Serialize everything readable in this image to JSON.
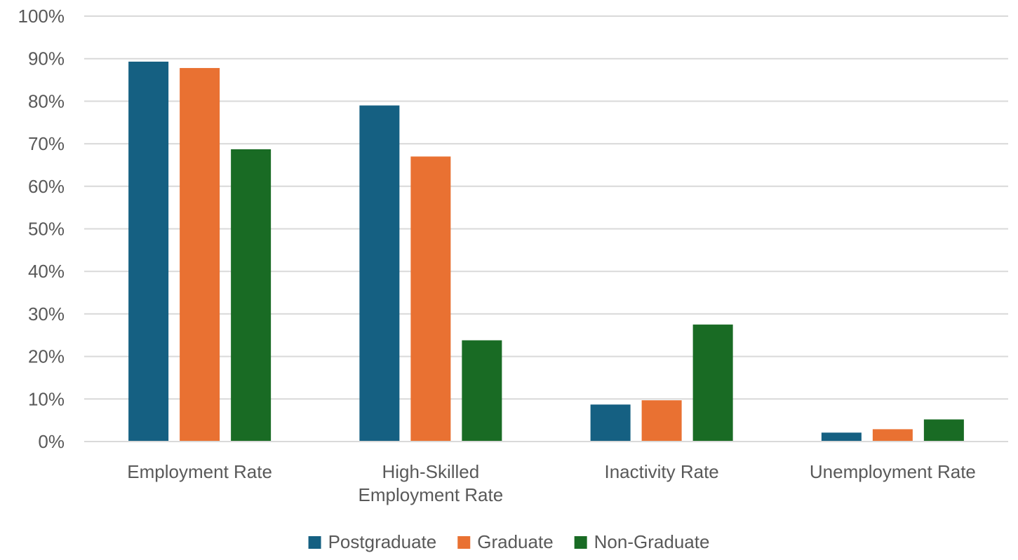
{
  "chart_data": {
    "type": "bar",
    "categories": [
      [
        "Employment Rate"
      ],
      [
        "High-Skilled",
        "Employment Rate"
      ],
      [
        "Inactivity Rate"
      ],
      [
        "Unemployment Rate"
      ]
    ],
    "series": [
      {
        "name": "Postgraduate",
        "color": "#156082",
        "values": [
          0.893,
          0.79,
          0.087,
          0.021
        ]
      },
      {
        "name": "Graduate",
        "color": "#E97132",
        "values": [
          0.878,
          0.67,
          0.097,
          0.029
        ]
      },
      {
        "name": "Non-Graduate",
        "color": "#196B24",
        "values": [
          0.687,
          0.238,
          0.275,
          0.052
        ]
      }
    ],
    "y_axis": {
      "min": 0,
      "max": 1,
      "step": 0.1,
      "format": "percent",
      "tick_labels": [
        "0%",
        "10%",
        "20%",
        "30%",
        "40%",
        "50%",
        "60%",
        "70%",
        "80%",
        "90%",
        "100%"
      ]
    },
    "title": "",
    "xlabel": "",
    "ylabel": "",
    "grid": true,
    "legend_position": "bottom"
  }
}
